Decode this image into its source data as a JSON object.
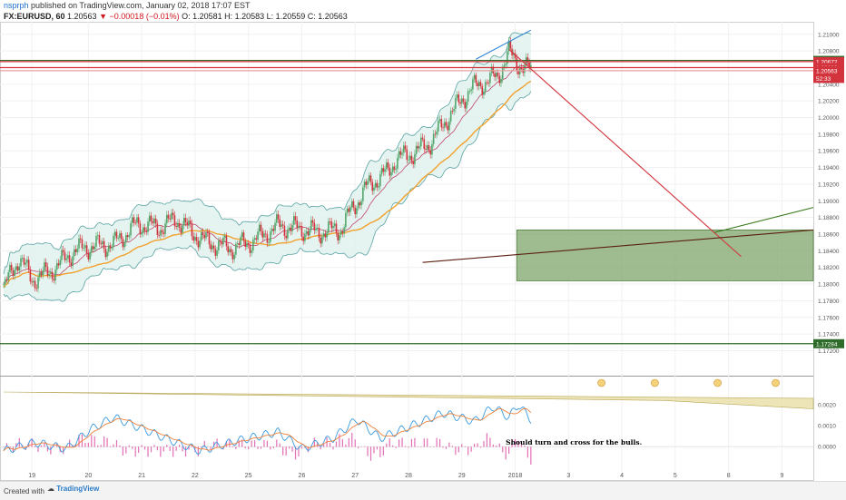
{
  "header": {
    "author": "nsprph",
    "published": "published on TradingView.com, January 02, 2018 17:07 EST",
    "symbol": "FX:EURUSD, 60",
    "last": "1.20563",
    "change": "−0.00018 (−0.01%)",
    "ohlc": "O: 1.20581 H: 1.20583 L: 1.20559 C: 1.20563"
  },
  "footer": {
    "created_with": "Created with",
    "brand": "TradingView"
  },
  "colors": {
    "up": "#53a66b",
    "down": "#d3333d",
    "bb": "#5aa3a3",
    "bbFill": "#dff1ee",
    "ma": "#f2a12f",
    "basis": "#c2456a",
    "macd": "#3b9be0",
    "signal": "#f0813b",
    "hist": "#e36fb5",
    "zone": "#7da56a"
  },
  "chart_data": {
    "type": "candlestick",
    "price_axis": {
      "ylim": [
        1.169,
        1.2115
      ],
      "ticks": [
        "1.21000",
        "1.20800",
        "1.20400",
        "1.20200",
        "1.20000",
        "1.19800",
        "1.19600",
        "1.19400",
        "1.19200",
        "1.19000",
        "1.18800",
        "1.18600",
        "1.18400",
        "1.18200",
        "1.18000",
        "1.17800",
        "1.17600",
        "1.17400",
        "1.17200"
      ]
    },
    "x_axis": {
      "ticks": [
        {
          "label": "19",
          "i": 18
        },
        {
          "label": "20",
          "i": 54
        },
        {
          "label": "21",
          "i": 88
        },
        {
          "label": "22",
          "i": 122
        },
        {
          "label": "25",
          "i": 156
        },
        {
          "label": "26",
          "i": 190
        },
        {
          "label": "27",
          "i": 224
        },
        {
          "label": "28",
          "i": 258
        },
        {
          "label": "29",
          "i": 292
        },
        {
          "label": "2018",
          "i": 326
        },
        {
          "label": "3",
          "i": 360
        },
        {
          "label": "4",
          "i": 394
        },
        {
          "label": "5",
          "i": 428
        },
        {
          "label": "8",
          "i": 462
        },
        {
          "label": "9",
          "i": 496
        }
      ],
      "range": [
        0,
        516
      ]
    },
    "price_tags": [
      {
        "label": "1.20686",
        "value": 1.20686,
        "color": "#2f6b2a"
      },
      {
        "label": "1.20672",
        "value": 1.20672,
        "color": "#d3333d"
      },
      {
        "label": "1.20600",
        "value": 1.206,
        "color": "#d3333d"
      },
      {
        "label": "1.20563",
        "value": 1.20563,
        "color": "#d3333d"
      },
      {
        "label": "52:33",
        "value": 1.2047,
        "color": "#d3333d"
      },
      {
        "label": "1.17284",
        "value": 1.17284,
        "color": "#2f6b2a"
      }
    ],
    "anchors": [
      [
        0,
        1.1795
      ],
      [
        10,
        1.1832
      ],
      [
        18,
        1.1805
      ],
      [
        30,
        1.1815
      ],
      [
        45,
        1.184
      ],
      [
        55,
        1.1845
      ],
      [
        70,
        1.1848
      ],
      [
        85,
        1.1872
      ],
      [
        100,
        1.1868
      ],
      [
        110,
        1.1878
      ],
      [
        120,
        1.1862
      ],
      [
        130,
        1.185
      ],
      [
        145,
        1.1843
      ],
      [
        160,
        1.1853
      ],
      [
        175,
        1.187
      ],
      [
        190,
        1.1866
      ],
      [
        200,
        1.1862
      ],
      [
        215,
        1.1866
      ],
      [
        222,
        1.189
      ],
      [
        232,
        1.1918
      ],
      [
        245,
        1.1935
      ],
      [
        250,
        1.195
      ],
      [
        262,
        1.1958
      ],
      [
        272,
        1.197
      ],
      [
        285,
        1.2005
      ],
      [
        298,
        1.2035
      ],
      [
        315,
        1.205
      ],
      [
        322,
        1.2078
      ],
      [
        328,
        1.2064
      ],
      [
        336,
        1.2056
      ]
    ],
    "bands": {
      "moving_average": "orange",
      "bollinger_bands": true
    },
    "horizontal_lines": [
      {
        "value": 1.20686,
        "color": "#2f6b2a"
      },
      {
        "value": 1.20672,
        "color": "#d3333d"
      },
      {
        "value": 1.206,
        "color": "#d3333d"
      },
      {
        "value": 1.20563,
        "color": "#e3a0a0"
      },
      {
        "value": 1.17284,
        "color": "#2f6b2a"
      }
    ],
    "target_zone": {
      "i0": 327,
      "i1": 516,
      "y0": 1.1804,
      "y1": 1.1865,
      "color": "#7da56a"
    },
    "trendlines": [
      {
        "i0": 301,
        "y0": 1.207,
        "i1": 336,
        "y1": 1.2105,
        "color": "#2f83d8"
      },
      {
        "i0": 322,
        "y0": 1.2082,
        "i1": 470,
        "y1": 1.1833,
        "color": "#d3333d"
      },
      {
        "i0": 267,
        "y0": 1.1826,
        "i1": 516,
        "y1": 1.1865,
        "color": "#5b1f10"
      },
      {
        "i0": 453,
        "y0": 1.1862,
        "i1": 516,
        "y1": 1.1892,
        "color": "#3c7a21"
      }
    ],
    "macd": {
      "ylim": [
        -0.0012,
        0.0026
      ],
      "ticks": [
        "0.0020",
        "0.0010",
        "0.0000"
      ],
      "annotation": "Should turn and cross for the bulls.",
      "anchors": [
        [
          0,
          -0.0002
        ],
        [
          20,
          0.0002
        ],
        [
          40,
          -0.0001
        ],
        [
          55,
          0.0008
        ],
        [
          70,
          0.0014
        ],
        [
          90,
          0.0008
        ],
        [
          110,
          0.0002
        ],
        [
          125,
          -0.0002
        ],
        [
          150,
          0.0003
        ],
        [
          175,
          0.0007
        ],
        [
          190,
          -0.0001
        ],
        [
          210,
          0.0004
        ],
        [
          225,
          0.0013
        ],
        [
          240,
          0.0004
        ],
        [
          260,
          0.001
        ],
        [
          280,
          0.0016
        ],
        [
          300,
          0.0012
        ],
        [
          312,
          0.0019
        ],
        [
          322,
          0.0014
        ],
        [
          328,
          0.002
        ],
        [
          336,
          0.0013
        ]
      ]
    }
  }
}
